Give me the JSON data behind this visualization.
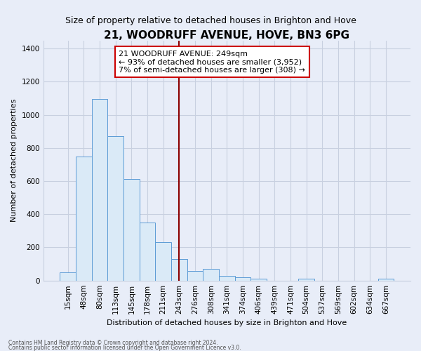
{
  "title": "21, WOODRUFF AVENUE, HOVE, BN3 6PG",
  "subtitle": "Size of property relative to detached houses in Brighton and Hove",
  "xlabel": "Distribution of detached houses by size in Brighton and Hove",
  "ylabel": "Number of detached properties",
  "footer_line1": "Contains HM Land Registry data © Crown copyright and database right 2024.",
  "footer_line2": "Contains public sector information licensed under the Open Government Licence v3.0.",
  "bar_labels": [
    "15sqm",
    "48sqm",
    "80sqm",
    "113sqm",
    "145sqm",
    "178sqm",
    "211sqm",
    "243sqm",
    "276sqm",
    "308sqm",
    "341sqm",
    "374sqm",
    "406sqm",
    "439sqm",
    "471sqm",
    "504sqm",
    "537sqm",
    "569sqm",
    "602sqm",
    "634sqm",
    "667sqm"
  ],
  "bar_values": [
    50,
    750,
    1095,
    870,
    615,
    350,
    230,
    130,
    60,
    70,
    28,
    20,
    12,
    0,
    0,
    10,
    0,
    0,
    0,
    0,
    10
  ],
  "bar_color": "#daeaf7",
  "bar_edge_color": "#5b9bd5",
  "vline_x_index": 7,
  "annotation_line1": "21 WOODRUFF AVENUE: 249sqm",
  "annotation_line2": "← 93% of detached houses are smaller (3,952)",
  "annotation_line3": "7% of semi-detached houses are larger (308) →",
  "vline_color": "#8b0000",
  "annotation_box_color": "#ffffff",
  "annotation_box_edge": "#cc0000",
  "ylim": [
    0,
    1450
  ],
  "background_color": "#e8edf8",
  "grid_color": "#c8d0e0",
  "title_fontsize": 11,
  "subtitle_fontsize": 9,
  "ylabel_fontsize": 8,
  "xlabel_fontsize": 8,
  "tick_fontsize": 7.5
}
